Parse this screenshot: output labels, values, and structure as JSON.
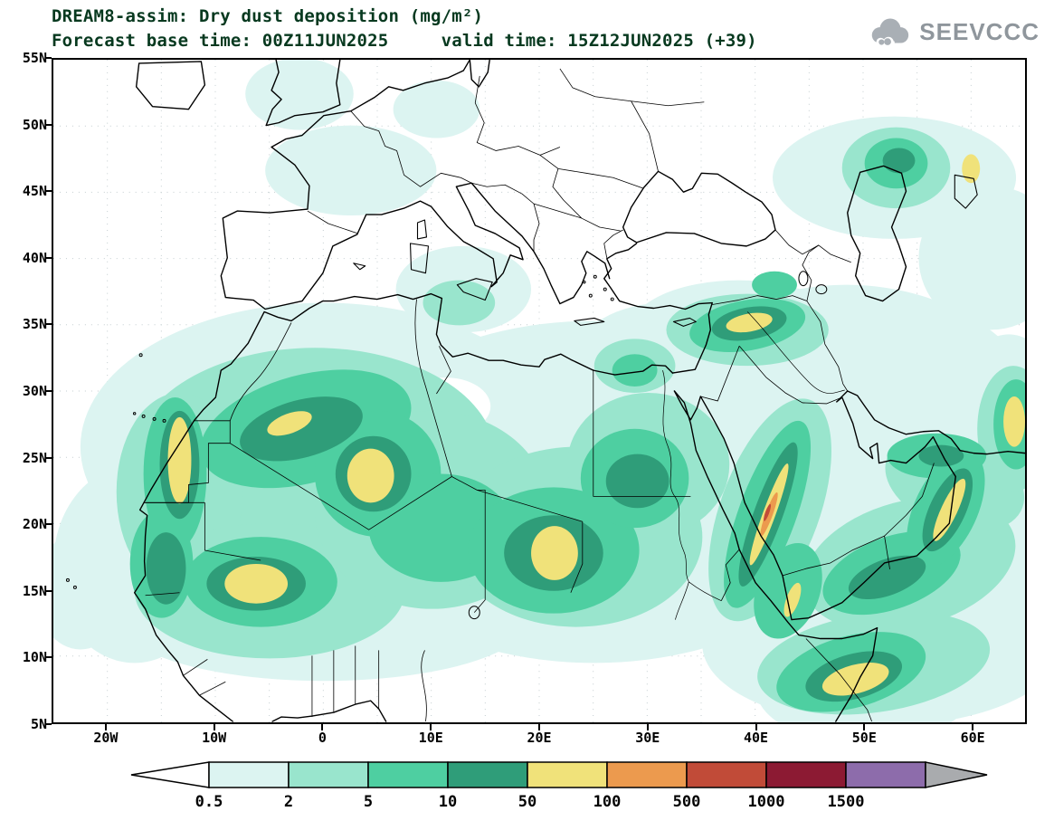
{
  "header": {
    "title_line1": "DREAM8-assim: Dry dust deposition (mg/m²)",
    "title_line2": "Forecast base time: 00Z11JUN2025     valid time: 15Z12JUN2025 (+39)",
    "logo_text": "SEEVCCC"
  },
  "map": {
    "x_ticks": [
      "20W",
      "10W",
      "0",
      "10E",
      "20E",
      "30E",
      "40E",
      "50E",
      "60E"
    ],
    "y_ticks": [
      "55N",
      "50N",
      "45N",
      "40N",
      "35N",
      "30N",
      "25N",
      "20N",
      "15N",
      "10N",
      "5N"
    ],
    "lon_range": [
      -25,
      65
    ],
    "lat_range": [
      5,
      55
    ]
  },
  "legend": {
    "labels": [
      "0.5",
      "2",
      "5",
      "10",
      "50",
      "100",
      "500",
      "1000",
      "1500"
    ],
    "colors": [
      "#ffffff",
      "#dcf4f1",
      "#99e5cd",
      "#4ecfa1",
      "#2f9d79",
      "#f0e27a",
      "#ec9a4e",
      "#c14b38",
      "#8c1a33",
      "#8d6cab",
      "#a9abae"
    ]
  },
  "chart_data": {
    "type": "filled-contour-map",
    "model": "DREAM8-assim",
    "variable": "Dry dust deposition",
    "units": "mg/m²",
    "forecast_base_time": "00Z11JUN2025",
    "valid_time": "15Z12JUN2025",
    "lead": "+39",
    "lon_range": [
      -25,
      65
    ],
    "lat_range": [
      5,
      55
    ],
    "contour_levels": [
      0.5,
      2,
      5,
      10,
      50,
      100,
      500,
      1000,
      1500
    ],
    "level_colors": [
      "#dcf4f1",
      "#99e5cd",
      "#4ecfa1",
      "#2f9d79",
      "#f0e27a",
      "#ec9a4e",
      "#c14b38",
      "#8c1a33",
      "#8d6cab"
    ],
    "below_min_color": "#ffffff",
    "above_max_color": "#a9abae",
    "legend_position": "bottom",
    "grid": "dotted, every 5 degrees"
  }
}
